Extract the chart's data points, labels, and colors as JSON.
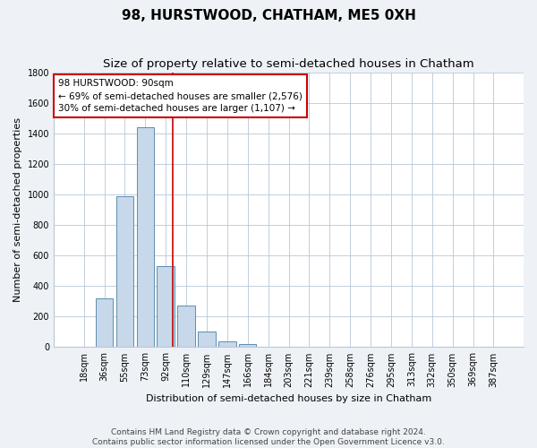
{
  "title": "98, HURSTWOOD, CHATHAM, ME5 0XH",
  "subtitle": "Size of property relative to semi-detached houses in Chatham",
  "xlabel": "Distribution of semi-detached houses by size in Chatham",
  "ylabel": "Number of semi-detached properties",
  "categories": [
    "18sqm",
    "36sqm",
    "55sqm",
    "73sqm",
    "92sqm",
    "110sqm",
    "129sqm",
    "147sqm",
    "166sqm",
    "184sqm",
    "203sqm",
    "221sqm",
    "239sqm",
    "258sqm",
    "276sqm",
    "295sqm",
    "313sqm",
    "332sqm",
    "350sqm",
    "369sqm",
    "387sqm"
  ],
  "values": [
    5,
    320,
    990,
    1440,
    530,
    275,
    105,
    35,
    20,
    0,
    0,
    0,
    0,
    0,
    0,
    0,
    0,
    0,
    0,
    0,
    0
  ],
  "bar_color": "#c6d8ea",
  "bar_edge_color": "#4a7fa5",
  "highlight_index": 4,
  "highlight_color": "#cc0000",
  "annotation_text": "98 HURSTWOOD: 90sqm\n← 69% of semi-detached houses are smaller (2,576)\n30% of semi-detached houses are larger (1,107) →",
  "annotation_box_color": "#ffffff",
  "annotation_box_edge_color": "#cc0000",
  "ylim": [
    0,
    1800
  ],
  "yticks": [
    0,
    200,
    400,
    600,
    800,
    1000,
    1200,
    1400,
    1600,
    1800
  ],
  "footer_line1": "Contains HM Land Registry data © Crown copyright and database right 2024.",
  "footer_line2": "Contains public sector information licensed under the Open Government Licence v3.0.",
  "background_color": "#eef2f7",
  "plot_bg_color": "#ffffff",
  "grid_color": "#b8c8d8",
  "title_fontsize": 11,
  "subtitle_fontsize": 9.5,
  "axis_label_fontsize": 8,
  "tick_fontsize": 7,
  "annotation_fontsize": 7.5,
  "footer_fontsize": 6.5
}
